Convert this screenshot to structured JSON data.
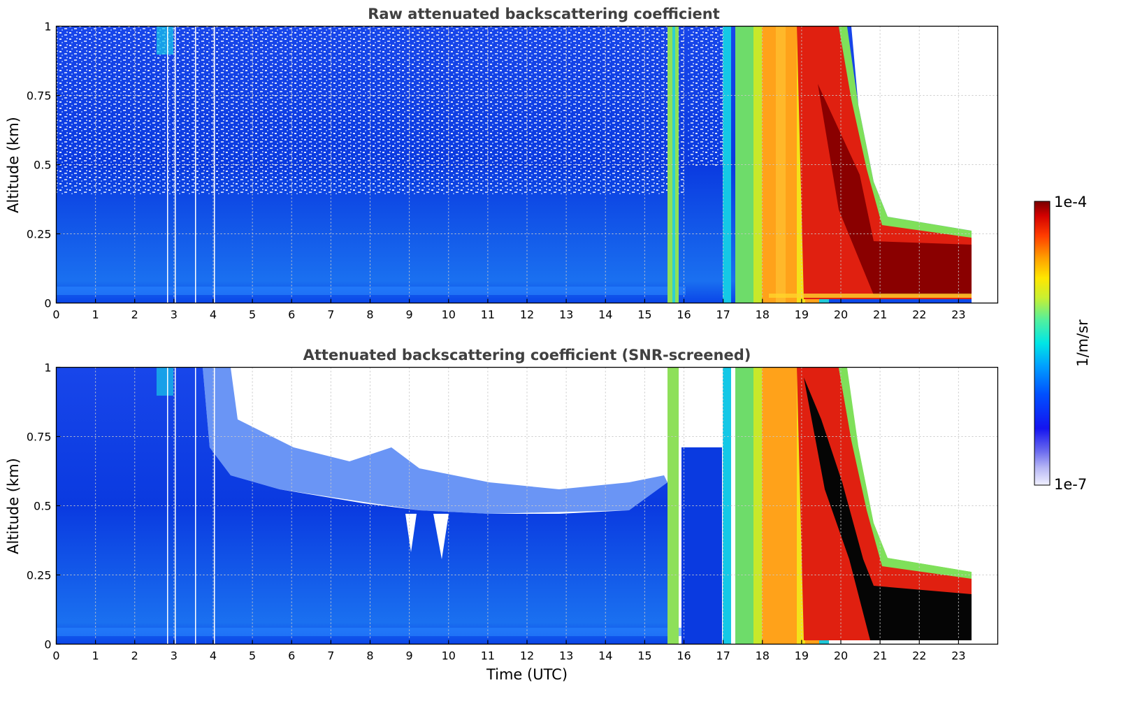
{
  "chart_data": [
    {
      "type": "heatmap",
      "title": "Raw attenuated backscattering coefficient",
      "xlabel": "",
      "ylabel": "Altitude (km)",
      "xlim": [
        0,
        24
      ],
      "ylim": [
        0,
        1
      ],
      "xticks": [
        "0",
        "1",
        "2",
        "3",
        "4",
        "5",
        "6",
        "7",
        "8",
        "9",
        "10",
        "11",
        "12",
        "13",
        "14",
        "15",
        "16",
        "17",
        "18",
        "19",
        "20",
        "21",
        "22",
        "23"
      ],
      "yticks": [
        "0",
        "0.25",
        "0.5",
        "0.75",
        "1"
      ],
      "ytick_values": [
        0,
        0.25,
        0.5,
        0.75,
        1
      ],
      "grid": true,
      "data_end_hour": 23.3,
      "colormap": "jet",
      "color_scale": "log",
      "value_range": [
        1e-07,
        0.0001
      ],
      "regions": [
        {
          "time": [
            0,
            15.5
          ],
          "altitude": [
            0,
            1
          ],
          "level": "low (blue, ~1e-6)"
        },
        {
          "time": [
            15.6,
            15.9
          ],
          "altitude": [
            0,
            1
          ],
          "level": "elevated (green/cyan)"
        },
        {
          "time": [
            17.0,
            17.5
          ],
          "altitude": [
            0,
            1
          ],
          "level": "elevated (cyan)"
        },
        {
          "time": [
            17.7,
            20.0
          ],
          "altitude": [
            0,
            1
          ],
          "level": "high (orange/yellow)"
        },
        {
          "time": [
            20.0,
            23.3
          ],
          "altitude": [
            0,
            0.25
          ],
          "level": "very high (dark red, ~1e-4)"
        }
      ]
    },
    {
      "type": "heatmap",
      "title": "Attenuated backscattering coefficient (SNR-screened)",
      "xlabel": "Time (UTC)",
      "ylabel": "Altitude (km)",
      "xlim": [
        0,
        24
      ],
      "ylim": [
        0,
        1
      ],
      "xticks": [
        "0",
        "1",
        "2",
        "3",
        "4",
        "5",
        "6",
        "7",
        "8",
        "9",
        "10",
        "11",
        "12",
        "13",
        "14",
        "15",
        "16",
        "17",
        "18",
        "19",
        "20",
        "21",
        "22",
        "23"
      ],
      "yticks": [
        "0",
        "0.25",
        "0.5",
        "0.75",
        "1"
      ],
      "ytick_values": [
        0,
        0.25,
        0.5,
        0.75,
        1
      ],
      "grid": true,
      "data_end_hour": 23.3,
      "colormap": "jet",
      "color_scale": "log",
      "value_range": [
        1e-07,
        0.0001
      ],
      "screened_out": "white (low SNR)",
      "regions": [
        {
          "time": [
            0,
            15.5
          ],
          "altitude": [
            0,
            0.5
          ],
          "level": "low (blue)"
        },
        {
          "time": [
            17.7,
            20.0
          ],
          "altitude": [
            0,
            1
          ],
          "level": "high (orange/yellow)"
        },
        {
          "time": [
            20.5,
            23.3
          ],
          "altitude": [
            0,
            0.2
          ],
          "level": "saturated (black)"
        }
      ]
    }
  ],
  "colorbar": {
    "label": "1/m/sr",
    "top_label": "1e-4",
    "bottom_label": "1e-7"
  }
}
